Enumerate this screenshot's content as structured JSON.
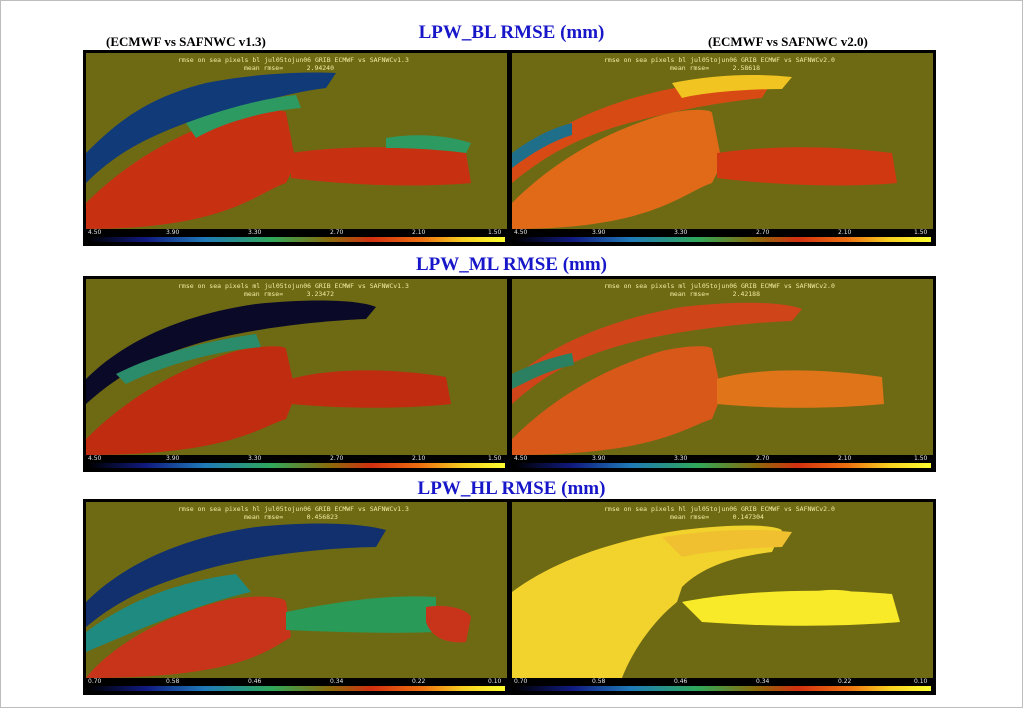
{
  "header": {
    "left_label": "(ECMWF vs SAFNWC v1.3)",
    "right_label": "(ECMWF vs SAFNWC v2.0)"
  },
  "rows": [
    {
      "title": "LPW_BL RMSE (mm)",
      "left": {
        "line1": "rmse on sea pixels bl jul05tojun06 GRIB ECMWF vs SAFNWCv1.3",
        "line2": "mean rmse=      2.94240"
      },
      "right": {
        "line1": "rmse on sea pixels bl jul05tojun06 GRIB ECMWF vs SAFNWCv2.0",
        "line2": "mean rmse=      2.58618"
      },
      "ticks": [
        "4.50",
        "3.90",
        "3.30",
        "2.70",
        "2.10",
        "1.50"
      ]
    },
    {
      "title": "LPW_ML RMSE (mm)",
      "left": {
        "line1": "rmse on sea pixels ml jul05tojun06 GRIB ECMWF vs SAFNWCv1.3",
        "line2": "mean rmse=      3.23472"
      },
      "right": {
        "line1": "rmse on sea pixels ml jul05tojun06 GRIB ECMWF vs SAFNWCv2.0",
        "line2": "mean rmse=      2.42188"
      },
      "ticks": [
        "4.50",
        "3.90",
        "3.30",
        "2.70",
        "2.10",
        "1.50"
      ]
    },
    {
      "title": "LPW_HL RMSE (mm)",
      "left": {
        "line1": "rmse on sea pixels hl jul05tojun06 GRIB ECMWF vs SAFNWCv1.3",
        "line2": "mean rmse=      0.456823"
      },
      "right": {
        "line1": "rmse on sea pixels hl jul05tojun06 GRIB ECMWF vs SAFNWCv2.0",
        "line2": "mean rmse=      0.147304"
      },
      "ticks": [
        "0.70",
        "0.58",
        "0.46",
        "0.34",
        "0.22",
        "0.10"
      ]
    }
  ],
  "colors": {
    "title": "#1717c9",
    "land": "#6e6a14",
    "annotation": "#f0eca0"
  }
}
